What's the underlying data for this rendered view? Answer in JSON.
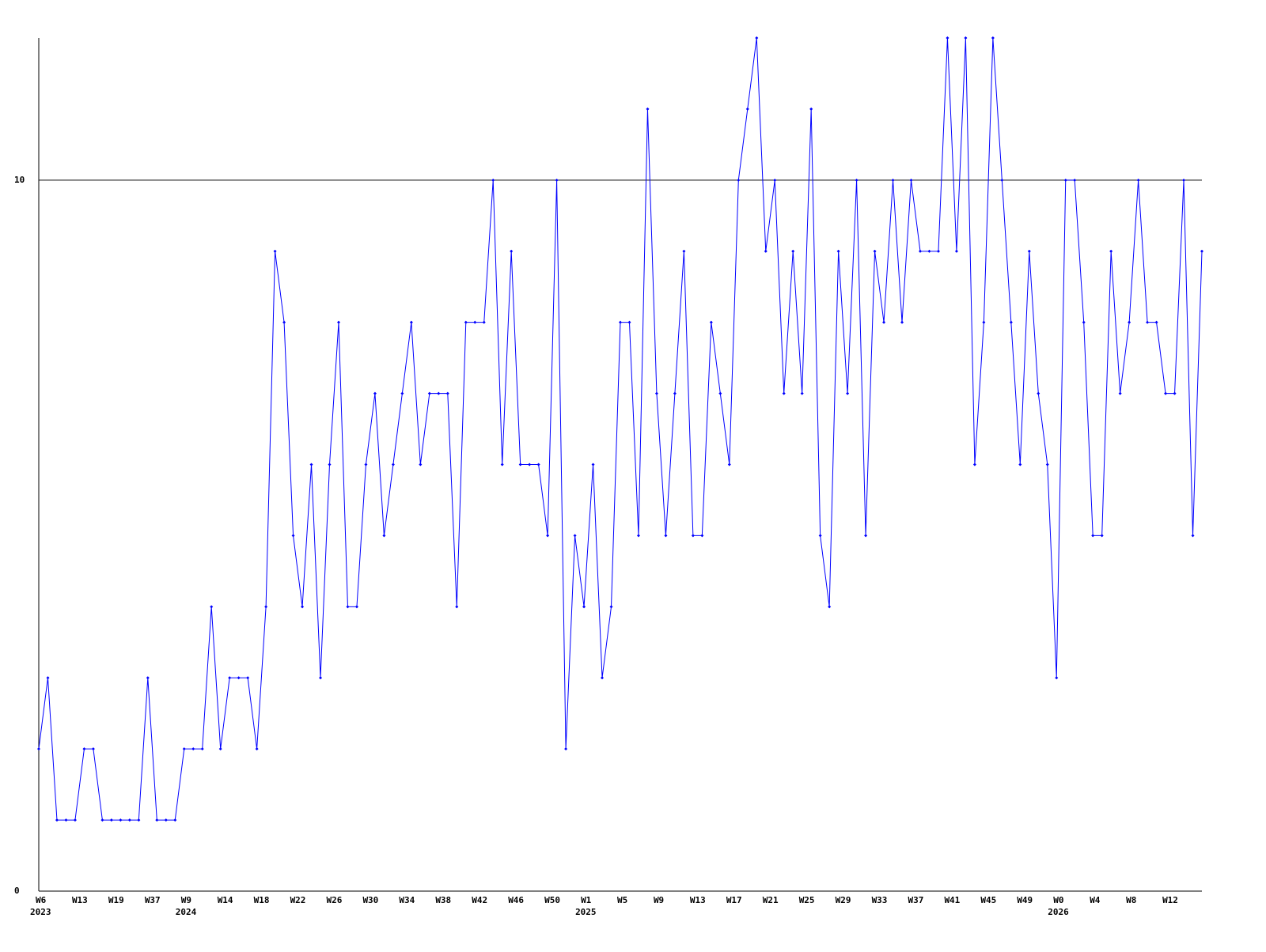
{
  "chart_data": {
    "type": "line",
    "categories": [
      "W6",
      null,
      null,
      null,
      "W13",
      null,
      null,
      null,
      "W19",
      null,
      null,
      null,
      "W37",
      null,
      null,
      null,
      "W9",
      null,
      null,
      null,
      "W14",
      null,
      null,
      null,
      "W18",
      null,
      null,
      null,
      "W22",
      null,
      null,
      null,
      "W26",
      null,
      null,
      null,
      "W30",
      null,
      null,
      null,
      "W34",
      null,
      null,
      null,
      "W38",
      null,
      null,
      null,
      "W42",
      null,
      null,
      null,
      "W46",
      null,
      null,
      null,
      "W50",
      null,
      null,
      null,
      "W1",
      null,
      null,
      null,
      "W5",
      null,
      null,
      null,
      "W9",
      null,
      null,
      null,
      "W13",
      null,
      null,
      null,
      "W17",
      null,
      null,
      null,
      "W21",
      null,
      null,
      null,
      "W25",
      null,
      null,
      null,
      "W29",
      null,
      null,
      null,
      "W33",
      null,
      null,
      null,
      "W37",
      null,
      null,
      null,
      "W41",
      null,
      null,
      null,
      "W45",
      null,
      null,
      null,
      "W49",
      null,
      null,
      null,
      "W0",
      null,
      null,
      null,
      "W4",
      null,
      null,
      null,
      "W8",
      null,
      null,
      null,
      "W12",
      null,
      null,
      null,
      null
    ],
    "category_years": [
      "2023",
      null,
      null,
      null,
      null,
      null,
      null,
      null,
      null,
      null,
      null,
      null,
      null,
      null,
      null,
      null,
      "2024",
      null,
      null,
      null,
      null,
      null,
      null,
      null,
      null,
      null,
      null,
      null,
      null,
      null,
      null,
      null,
      null,
      null,
      null,
      null,
      null,
      null,
      null,
      null,
      null,
      null,
      null,
      null,
      null,
      null,
      null,
      null,
      null,
      null,
      null,
      null,
      null,
      null,
      null,
      null,
      null,
      null,
      null,
      null,
      "2025",
      null,
      null,
      null,
      null,
      null,
      null,
      null,
      null,
      null,
      null,
      null,
      null,
      null,
      null,
      null,
      null,
      null,
      null,
      null,
      null,
      null,
      null,
      null,
      null,
      null,
      null,
      null,
      null,
      null,
      null,
      null,
      null,
      null,
      null,
      null,
      null,
      null,
      null,
      null,
      null,
      null,
      null,
      null,
      null,
      null,
      null,
      null,
      null,
      null,
      null,
      null,
      "2026",
      null,
      null,
      null,
      null,
      null,
      null,
      null,
      null,
      null,
      null,
      null,
      null,
      null,
      null,
      null,
      null
    ],
    "values": [
      2,
      3,
      1,
      1,
      1,
      2,
      2,
      1,
      1,
      1,
      1,
      1,
      3,
      1,
      1,
      1,
      2,
      2,
      2,
      4,
      2,
      3,
      3,
      3,
      2,
      4,
      9,
      8,
      5,
      4,
      6,
      3,
      6,
      8,
      4,
      4,
      6,
      7,
      5,
      6,
      7,
      8,
      6,
      7,
      7,
      7,
      4,
      8,
      8,
      8,
      10,
      6,
      9,
      6,
      6,
      6,
      5,
      10,
      2,
      5,
      4,
      6,
      3,
      4,
      8,
      8,
      5,
      11,
      7,
      5,
      7,
      9,
      5,
      5,
      8,
      7,
      6,
      10,
      11,
      12,
      9,
      10,
      7,
      9,
      7,
      11,
      5,
      4,
      9,
      7,
      10,
      5,
      9,
      8,
      10,
      8,
      10,
      9,
      9,
      9,
      12,
      9,
      12,
      6,
      8,
      12,
      10,
      8,
      6,
      9,
      7,
      6,
      3,
      10,
      10,
      8,
      5,
      5,
      9,
      7,
      8,
      10,
      8,
      8,
      7,
      7,
      10,
      5,
      9
    ],
    "color": "#0000ff",
    "ylim": [
      0,
      12
    ],
    "yticks": [
      0,
      10
    ],
    "grid": true
  }
}
